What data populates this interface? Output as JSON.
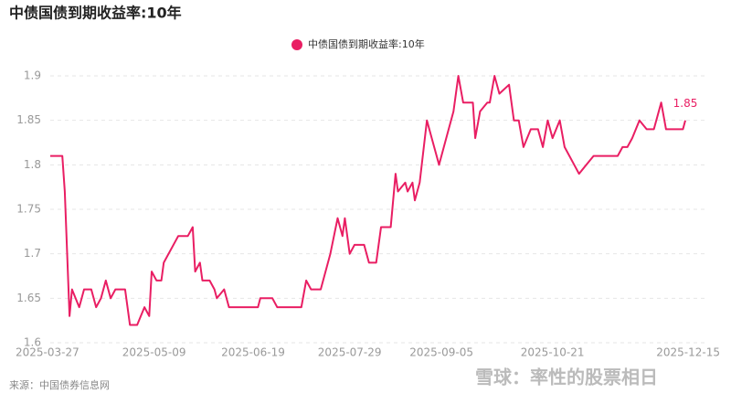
{
  "chart_data": {
    "type": "line",
    "title": "中债国债到期收益率:10年",
    "source": "来源：中国债券信息网",
    "watermark": "雪球：率性的股票相日",
    "x": [
      "2025-03-27",
      "2025-04-01",
      "2025-04-02",
      "2025-04-04",
      "2025-04-05",
      "2025-04-08",
      "2025-04-10",
      "2025-04-13",
      "2025-04-15",
      "2025-04-17",
      "2025-04-19",
      "2025-04-21",
      "2025-04-23",
      "2025-04-27",
      "2025-04-29",
      "2025-05-02",
      "2025-05-05",
      "2025-05-07",
      "2025-05-08",
      "2025-05-10",
      "2025-05-12",
      "2025-05-13",
      "2025-05-19",
      "2025-05-23",
      "2025-05-25",
      "2025-05-26",
      "2025-05-28",
      "2025-05-29",
      "2025-06-01",
      "2025-06-03",
      "2025-06-04",
      "2025-06-07",
      "2025-06-09",
      "2025-06-11",
      "2025-06-21",
      "2025-06-22",
      "2025-06-27",
      "2025-06-29",
      "2025-07-09",
      "2025-07-11",
      "2025-07-13",
      "2025-07-17",
      "2025-07-21",
      "2025-07-24",
      "2025-07-26",
      "2025-07-27",
      "2025-07-29",
      "2025-07-31",
      "2025-08-04",
      "2025-08-06",
      "2025-08-09",
      "2025-08-11",
      "2025-08-15",
      "2025-08-17",
      "2025-08-18",
      "2025-08-21",
      "2025-08-22",
      "2025-08-24",
      "2025-08-25",
      "2025-08-27",
      "2025-08-30",
      "2025-09-01",
      "2025-09-04",
      "2025-09-08",
      "2025-09-10",
      "2025-09-12",
      "2025-09-14",
      "2025-09-18",
      "2025-09-19",
      "2025-09-21",
      "2025-09-24",
      "2025-09-25",
      "2025-09-27",
      "2025-09-29",
      "2025-10-03",
      "2025-10-05",
      "2025-10-07",
      "2025-10-09",
      "2025-10-12",
      "2025-10-15",
      "2025-10-17",
      "2025-10-19",
      "2025-10-21",
      "2025-10-24",
      "2025-10-26",
      "2025-10-30",
      "2025-11-01",
      "2025-11-04",
      "2025-11-07",
      "2025-11-17",
      "2025-11-19",
      "2025-11-21",
      "2025-11-23",
      "2025-11-26",
      "2025-11-29",
      "2025-12-02",
      "2025-12-05",
      "2025-12-07",
      "2025-12-09",
      "2025-12-14",
      "2025-12-15"
    ],
    "series": [
      {
        "name": "中债国债到期收益率:10年",
        "color": "#e91e63",
        "values": [
          1.81,
          1.81,
          1.77,
          1.63,
          1.66,
          1.64,
          1.66,
          1.66,
          1.64,
          1.65,
          1.67,
          1.65,
          1.66,
          1.66,
          1.62,
          1.62,
          1.64,
          1.63,
          1.68,
          1.67,
          1.67,
          1.69,
          1.72,
          1.72,
          1.73,
          1.68,
          1.69,
          1.67,
          1.67,
          1.66,
          1.65,
          1.66,
          1.64,
          1.64,
          1.64,
          1.65,
          1.65,
          1.64,
          1.64,
          1.67,
          1.66,
          1.66,
          1.7,
          1.74,
          1.72,
          1.74,
          1.7,
          1.71,
          1.71,
          1.69,
          1.69,
          1.73,
          1.73,
          1.79,
          1.77,
          1.78,
          1.77,
          1.78,
          1.76,
          1.78,
          1.85,
          1.83,
          1.8,
          1.84,
          1.86,
          1.9,
          1.87,
          1.87,
          1.83,
          1.86,
          1.87,
          1.87,
          1.9,
          1.88,
          1.89,
          1.85,
          1.85,
          1.82,
          1.84,
          1.84,
          1.82,
          1.85,
          1.83,
          1.85,
          1.82,
          1.8,
          1.79,
          1.8,
          1.81,
          1.81,
          1.82,
          1.82,
          1.83,
          1.85,
          1.84,
          1.84,
          1.87,
          1.84,
          1.84,
          1.84,
          1.85
        ]
      }
    ],
    "xlim": [
      "2025-03-27",
      "2025-12-15"
    ],
    "xticks": [
      "2025-03-27",
      "2025-05-09",
      "2025-06-19",
      "2025-07-29",
      "2025-09-05",
      "2025-10-21",
      "2025-12-15"
    ],
    "ylim": [
      1.6,
      1.9
    ],
    "yticks": [
      1.6,
      1.65,
      1.7,
      1.75,
      1.8,
      1.85,
      1.9
    ],
    "grid": true
  }
}
